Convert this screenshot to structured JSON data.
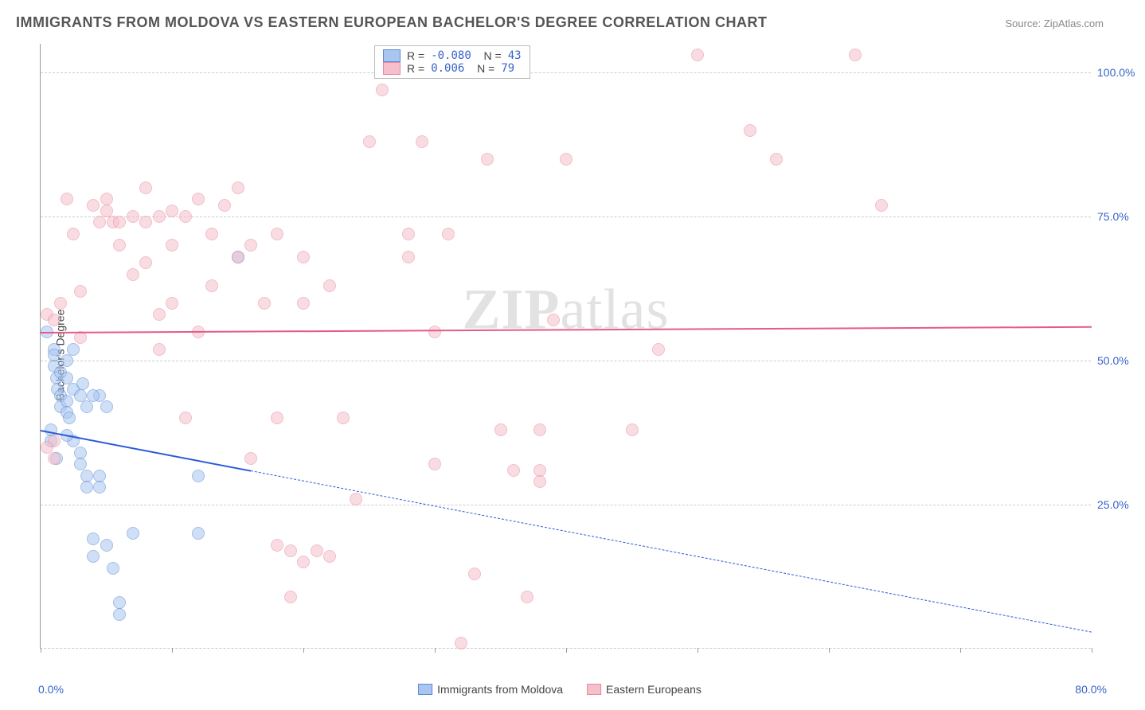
{
  "title": "IMMIGRANTS FROM MOLDOVA VS EASTERN EUROPEAN BACHELOR'S DEGREE CORRELATION CHART",
  "source": "Source: ZipAtlas.com",
  "ylabel": "Bachelor's Degree",
  "watermark_a": "ZIP",
  "watermark_b": "atlas",
  "chart": {
    "type": "scatter",
    "xlim": [
      0,
      80
    ],
    "ylim": [
      0,
      105
    ],
    "xlabel_min": "0.0%",
    "xlabel_max": "80.0%",
    "ytick_labels": [
      "25.0%",
      "50.0%",
      "75.0%",
      "100.0%"
    ],
    "ytick_values": [
      25,
      50,
      75,
      100
    ],
    "xtick_values": [
      0,
      10,
      20,
      30,
      40,
      50,
      60,
      70,
      80
    ],
    "grid_color": "#cccccc",
    "background_color": "#ffffff",
    "marker_radius": 8,
    "marker_opacity": 0.55,
    "series": [
      {
        "name": "Immigrants from Moldova",
        "color_fill": "#a9c6f0",
        "color_stroke": "#5a8ad6",
        "trend_color": "#2a5bd7",
        "R": "-0.080",
        "N": "43",
        "trend": {
          "x0": 0,
          "y0": 38,
          "x1": 80,
          "y1": 3,
          "solid_until_x": 16
        },
        "points": [
          [
            0.5,
            55
          ],
          [
            1,
            52
          ],
          [
            1,
            49
          ],
          [
            1.2,
            47
          ],
          [
            1.3,
            45
          ],
          [
            1.5,
            48
          ],
          [
            1.5,
            44
          ],
          [
            1.5,
            42
          ],
          [
            2,
            47
          ],
          [
            2,
            43
          ],
          [
            2,
            41
          ],
          [
            2.2,
            40
          ],
          [
            2.5,
            45
          ],
          [
            2.5,
            36
          ],
          [
            3,
            44
          ],
          [
            3,
            34
          ],
          [
            3,
            32
          ],
          [
            3.5,
            30
          ],
          [
            3.5,
            28
          ],
          [
            4,
            19
          ],
          [
            4,
            16
          ],
          [
            4.5,
            44
          ],
          [
            4.5,
            30
          ],
          [
            4.5,
            28
          ],
          [
            5,
            42
          ],
          [
            5,
            18
          ],
          [
            5.5,
            14
          ],
          [
            6,
            8
          ],
          [
            6,
            6
          ],
          [
            7,
            20
          ],
          [
            12,
            30
          ],
          [
            12,
            20
          ],
          [
            15,
            68
          ],
          [
            0.8,
            36
          ],
          [
            0.8,
            38
          ],
          [
            1.2,
            33
          ],
          [
            2,
            37
          ],
          [
            3.2,
            46
          ],
          [
            3.5,
            42
          ],
          [
            4,
            44
          ],
          [
            2.5,
            52
          ],
          [
            1,
            51
          ],
          [
            2,
            50
          ]
        ]
      },
      {
        "name": "Eastern Europeans",
        "color_fill": "#f5c0cb",
        "color_stroke": "#e68aa0",
        "trend_color": "#e65a8a",
        "R": "0.006",
        "N": "79",
        "trend": {
          "x0": 0,
          "y0": 55,
          "x1": 80,
          "y1": 56,
          "solid_until_x": 80
        },
        "points": [
          [
            0.5,
            58
          ],
          [
            1,
            57
          ],
          [
            1,
            36
          ],
          [
            1.5,
            60
          ],
          [
            2,
            78
          ],
          [
            2.5,
            72
          ],
          [
            3,
            62
          ],
          [
            3,
            54
          ],
          [
            4,
            77
          ],
          [
            4.5,
            74
          ],
          [
            5,
            78
          ],
          [
            5,
            76
          ],
          [
            5.5,
            74
          ],
          [
            6,
            74
          ],
          [
            6,
            70
          ],
          [
            7,
            75
          ],
          [
            7,
            65
          ],
          [
            8,
            74
          ],
          [
            8,
            80
          ],
          [
            8,
            67
          ],
          [
            9,
            75
          ],
          [
            9,
            58
          ],
          [
            9,
            52
          ],
          [
            10,
            76
          ],
          [
            10,
            70
          ],
          [
            10,
            60
          ],
          [
            11,
            75
          ],
          [
            11,
            40
          ],
          [
            12,
            78
          ],
          [
            12,
            55
          ],
          [
            13,
            72
          ],
          [
            13,
            63
          ],
          [
            14,
            77
          ],
          [
            15,
            80
          ],
          [
            15,
            68
          ],
          [
            16,
            70
          ],
          [
            16,
            33
          ],
          [
            17,
            60
          ],
          [
            18,
            72
          ],
          [
            18,
            40
          ],
          [
            18,
            18
          ],
          [
            19,
            17
          ],
          [
            19,
            9
          ],
          [
            20,
            68
          ],
          [
            20,
            60
          ],
          [
            20,
            15
          ],
          [
            21,
            17
          ],
          [
            22,
            63
          ],
          [
            22,
            16
          ],
          [
            23,
            40
          ],
          [
            24,
            26
          ],
          [
            25,
            88
          ],
          [
            26,
            97
          ],
          [
            28,
            72
          ],
          [
            28,
            68
          ],
          [
            29,
            88
          ],
          [
            30,
            55
          ],
          [
            30,
            32
          ],
          [
            31,
            72
          ],
          [
            32,
            1
          ],
          [
            33,
            13
          ],
          [
            34,
            85
          ],
          [
            35,
            38
          ],
          [
            36,
            31
          ],
          [
            37,
            9
          ],
          [
            38,
            38
          ],
          [
            38,
            31
          ],
          [
            38,
            29
          ],
          [
            39,
            57
          ],
          [
            40,
            85
          ],
          [
            45,
            38
          ],
          [
            47,
            52
          ],
          [
            50,
            103
          ],
          [
            54,
            90
          ],
          [
            56,
            85
          ],
          [
            62,
            103
          ],
          [
            64,
            77
          ],
          [
            1,
            33
          ],
          [
            0.5,
            35
          ]
        ]
      }
    ]
  },
  "legend_bottom": [
    {
      "label": "Immigrants from Moldova",
      "fill": "#a9c6f0",
      "stroke": "#5a8ad6"
    },
    {
      "label": "Eastern Europeans",
      "fill": "#f5c0cb",
      "stroke": "#e68aa0"
    }
  ]
}
